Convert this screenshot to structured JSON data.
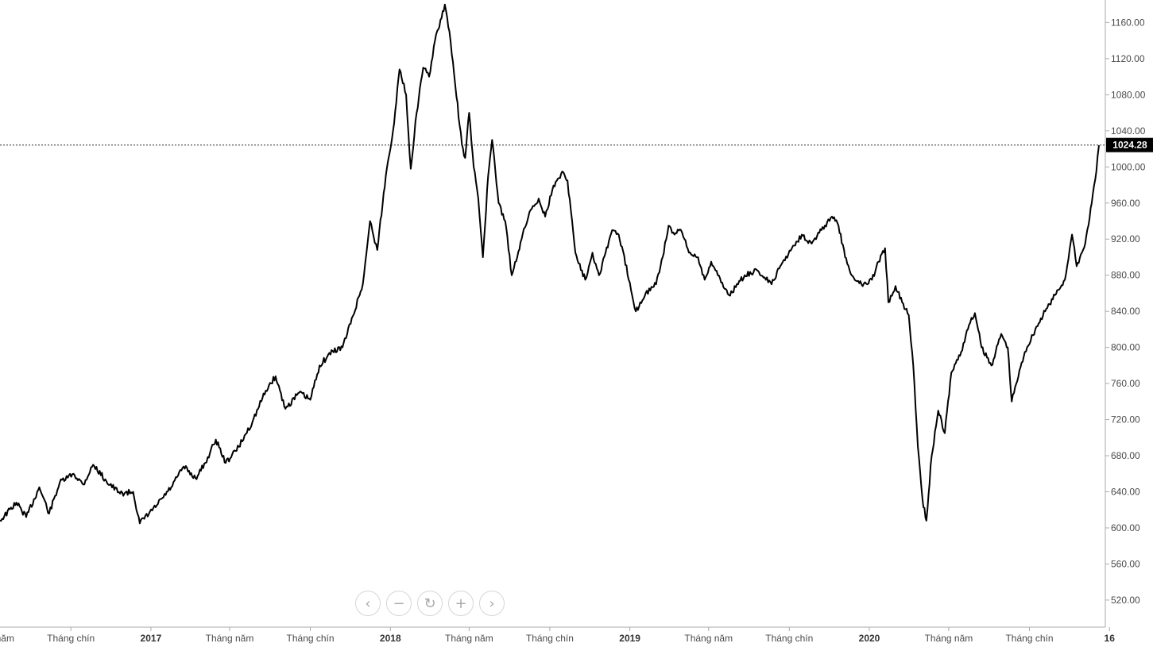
{
  "chart_data": {
    "type": "line",
    "title": "",
    "xlabel": "",
    "ylabel": "",
    "ylim": [
      490,
      1185
    ],
    "x_range": [
      "2016-05-16",
      "2020-12-16"
    ],
    "grid": false,
    "line_color": "#000000",
    "current_value_label": "1024.28",
    "current_value": 1024.28,
    "y_ticks": [
      "520.00",
      "560.00",
      "600.00",
      "640.00",
      "680.00",
      "720.00",
      "760.00",
      "800.00",
      "840.00",
      "880.00",
      "920.00",
      "960.00",
      "1000.00",
      "1040.00",
      "1080.00",
      "1120.00",
      "1160.00"
    ],
    "x_ticks": [
      {
        "date": "2016-05-01",
        "label": "Tháng năm",
        "bold": false
      },
      {
        "date": "2016-09-01",
        "label": "Tháng chín",
        "bold": false
      },
      {
        "date": "2017-01-01",
        "label": "2017",
        "bold": true
      },
      {
        "date": "2017-05-01",
        "label": "Tháng năm",
        "bold": false
      },
      {
        "date": "2017-09-01",
        "label": "Tháng chín",
        "bold": false
      },
      {
        "date": "2018-01-01",
        "label": "2018",
        "bold": true
      },
      {
        "date": "2018-05-01",
        "label": "Tháng năm",
        "bold": false
      },
      {
        "date": "2018-09-01",
        "label": "Tháng chín",
        "bold": false
      },
      {
        "date": "2019-01-01",
        "label": "2019",
        "bold": true
      },
      {
        "date": "2019-05-01",
        "label": "Tháng năm",
        "bold": false
      },
      {
        "date": "2019-09-01",
        "label": "Tháng chín",
        "bold": false
      },
      {
        "date": "2020-01-01",
        "label": "2020",
        "bold": true
      },
      {
        "date": "2020-05-01",
        "label": "Tháng năm",
        "bold": false
      },
      {
        "date": "2020-09-01",
        "label": "Tháng chín",
        "bold": false
      },
      {
        "date": "2021-01-01",
        "label": "16",
        "bold": true
      }
    ],
    "series": [
      {
        "name": "",
        "points": [
          [
            "2016-05-16",
            608
          ],
          [
            "2016-06-10",
            628
          ],
          [
            "2016-06-25",
            612
          ],
          [
            "2016-07-15",
            645
          ],
          [
            "2016-07-30",
            616
          ],
          [
            "2016-08-15",
            650
          ],
          [
            "2016-09-05",
            660
          ],
          [
            "2016-09-20",
            648
          ],
          [
            "2016-10-05",
            670
          ],
          [
            "2016-10-25",
            652
          ],
          [
            "2016-11-15",
            638
          ],
          [
            "2016-12-05",
            640
          ],
          [
            "2016-12-15",
            605
          ],
          [
            "2017-01-10",
            625
          ],
          [
            "2017-02-01",
            645
          ],
          [
            "2017-02-20",
            668
          ],
          [
            "2017-03-10",
            655
          ],
          [
            "2017-03-25",
            672
          ],
          [
            "2017-04-10",
            698
          ],
          [
            "2017-04-25",
            672
          ],
          [
            "2017-05-15",
            690
          ],
          [
            "2017-06-05",
            718
          ],
          [
            "2017-06-25",
            752
          ],
          [
            "2017-07-10",
            768
          ],
          [
            "2017-07-25",
            732
          ],
          [
            "2017-08-15",
            750
          ],
          [
            "2017-09-01",
            742
          ],
          [
            "2017-09-15",
            780
          ],
          [
            "2017-10-05",
            796
          ],
          [
            "2017-10-20",
            800
          ],
          [
            "2017-11-05",
            835
          ],
          [
            "2017-11-20",
            870
          ],
          [
            "2017-12-01",
            940
          ],
          [
            "2017-12-12",
            908
          ],
          [
            "2017-12-25",
            990
          ],
          [
            "2018-01-05",
            1040
          ],
          [
            "2018-01-15",
            1108
          ],
          [
            "2018-01-25",
            1080
          ],
          [
            "2018-02-01",
            998
          ],
          [
            "2018-02-10",
            1060
          ],
          [
            "2018-02-20",
            1110
          ],
          [
            "2018-03-01",
            1100
          ],
          [
            "2018-03-10",
            1140
          ],
          [
            "2018-03-20",
            1165
          ],
          [
            "2018-03-25",
            1180
          ],
          [
            "2018-04-01",
            1150
          ],
          [
            "2018-04-10",
            1090
          ],
          [
            "2018-04-20",
            1025
          ],
          [
            "2018-04-25",
            1010
          ],
          [
            "2018-05-01",
            1060
          ],
          [
            "2018-05-08",
            1000
          ],
          [
            "2018-05-15",
            965
          ],
          [
            "2018-05-22",
            900
          ],
          [
            "2018-05-30",
            990
          ],
          [
            "2018-06-05",
            1030
          ],
          [
            "2018-06-15",
            960
          ],
          [
            "2018-06-25",
            940
          ],
          [
            "2018-07-05",
            880
          ],
          [
            "2018-07-20",
            920
          ],
          [
            "2018-08-01",
            950
          ],
          [
            "2018-08-15",
            965
          ],
          [
            "2018-08-25",
            945
          ],
          [
            "2018-09-05",
            975
          ],
          [
            "2018-09-20",
            995
          ],
          [
            "2018-09-28",
            985
          ],
          [
            "2018-10-10",
            905
          ],
          [
            "2018-10-25",
            875
          ],
          [
            "2018-11-05",
            905
          ],
          [
            "2018-11-15",
            880
          ],
          [
            "2018-11-25",
            905
          ],
          [
            "2018-12-05",
            930
          ],
          [
            "2018-12-15",
            925
          ],
          [
            "2019-01-01",
            872
          ],
          [
            "2019-01-10",
            840
          ],
          [
            "2019-01-25",
            860
          ],
          [
            "2019-02-10",
            870
          ],
          [
            "2019-02-20",
            900
          ],
          [
            "2019-03-01",
            935
          ],
          [
            "2019-03-10",
            925
          ],
          [
            "2019-03-20",
            930
          ],
          [
            "2019-04-01",
            905
          ],
          [
            "2019-04-15",
            900
          ],
          [
            "2019-04-25",
            875
          ],
          [
            "2019-05-05",
            895
          ],
          [
            "2019-05-15",
            880
          ],
          [
            "2019-06-01",
            858
          ],
          [
            "2019-06-15",
            870
          ],
          [
            "2019-06-25",
            880
          ],
          [
            "2019-07-15",
            885
          ],
          [
            "2019-08-05",
            870
          ],
          [
            "2019-08-20",
            892
          ],
          [
            "2019-09-05",
            910
          ],
          [
            "2019-09-20",
            925
          ],
          [
            "2019-10-05",
            915
          ],
          [
            "2019-10-20",
            930
          ],
          [
            "2019-11-05",
            945
          ],
          [
            "2019-11-15",
            935
          ],
          [
            "2019-11-25",
            900
          ],
          [
            "2019-12-05",
            880
          ],
          [
            "2019-12-20",
            870
          ],
          [
            "2020-01-05",
            875
          ],
          [
            "2020-01-15",
            895
          ],
          [
            "2020-01-25",
            910
          ],
          [
            "2020-01-30",
            850
          ],
          [
            "2020-02-10",
            868
          ],
          [
            "2020-02-20",
            850
          ],
          [
            "2020-03-01",
            836
          ],
          [
            "2020-03-08",
            780
          ],
          [
            "2020-03-15",
            690
          ],
          [
            "2020-03-22",
            632
          ],
          [
            "2020-03-28",
            608
          ],
          [
            "2020-04-05",
            680
          ],
          [
            "2020-04-15",
            730
          ],
          [
            "2020-04-25",
            705
          ],
          [
            "2020-05-05",
            772
          ],
          [
            "2020-05-20",
            795
          ],
          [
            "2020-06-01",
            825
          ],
          [
            "2020-06-10",
            838
          ],
          [
            "2020-06-20",
            800
          ],
          [
            "2020-07-05",
            780
          ],
          [
            "2020-07-20",
            815
          ],
          [
            "2020-07-30",
            800
          ],
          [
            "2020-08-05",
            740
          ],
          [
            "2020-08-12",
            760
          ],
          [
            "2020-08-25",
            795
          ],
          [
            "2020-09-10",
            820
          ],
          [
            "2020-09-25",
            840
          ],
          [
            "2020-10-10",
            858
          ],
          [
            "2020-10-25",
            875
          ],
          [
            "2020-11-05",
            925
          ],
          [
            "2020-11-12",
            890
          ],
          [
            "2020-11-25",
            915
          ],
          [
            "2020-12-05",
            960
          ],
          [
            "2020-12-12",
            995
          ],
          [
            "2020-12-16",
            1024
          ]
        ]
      }
    ]
  },
  "controls": {
    "prev_icon": "‹",
    "zoom_out_icon": "−",
    "reset_icon": "↻",
    "zoom_in_icon": "+",
    "next_icon": "›"
  }
}
